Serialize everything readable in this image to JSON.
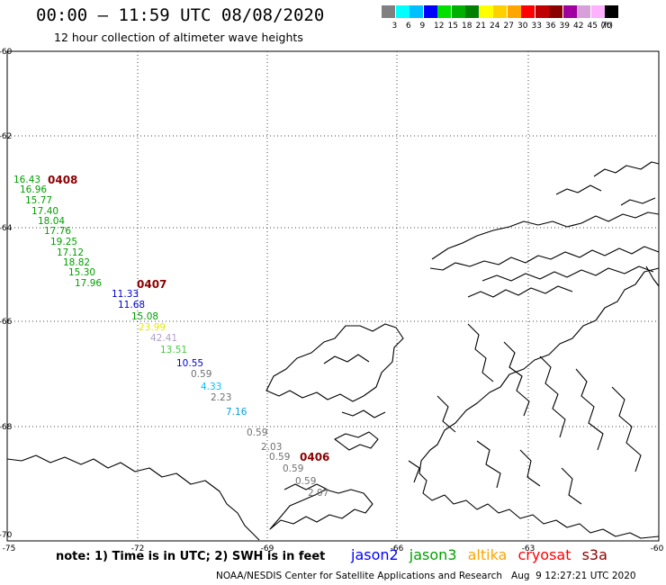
{
  "header": {
    "title": "00:00 — 11:59 UTC 08/08/2020",
    "subtitle": "12 hour collection of altimeter wave heights"
  },
  "legend": {
    "colors": [
      "#808080",
      "#00ffff",
      "#00c0ff",
      "#0000ff",
      "#00e000",
      "#00b000",
      "#008000",
      "#ffff00",
      "#ffd000",
      "#ffa500",
      "#ff0000",
      "#c00000",
      "#8b0000",
      "#a000a0",
      "#d8a0d8",
      "#ffb0ff",
      "#000000"
    ],
    "labels": [
      "3",
      "6",
      "9",
      "12",
      "15",
      "18",
      "21",
      "24",
      "27",
      "30",
      "33",
      "36",
      "39",
      "42",
      "45",
      "70"
    ],
    "unit": "(ft)"
  },
  "axes": {
    "lat_labels": [
      "-60",
      "-62",
      "-64",
      "-66",
      "-68",
      "-70"
    ],
    "lon_labels": [
      "-75",
      "-72",
      "-69",
      "-66",
      "-63",
      "-60"
    ]
  },
  "passes": [
    {
      "id": "0408"
    },
    {
      "id": "0407"
    },
    {
      "id": "0406"
    }
  ],
  "measurements": [
    {
      "value": "16.43",
      "color": "#00a000"
    },
    {
      "value": "16.96",
      "color": "#00a000"
    },
    {
      "value": "15.77",
      "color": "#00a000"
    },
    {
      "value": "17.40",
      "color": "#00a000"
    },
    {
      "value": "18.04",
      "color": "#00a000"
    },
    {
      "value": "17.76",
      "color": "#00a000"
    },
    {
      "value": "19.25",
      "color": "#00a000"
    },
    {
      "value": "17.12",
      "color": "#00a000"
    },
    {
      "value": "18.82",
      "color": "#00a000"
    },
    {
      "value": "15.30",
      "color": "#00a000"
    },
    {
      "value": "17.96",
      "color": "#00a000"
    },
    {
      "value": "11.33",
      "color": "#0000d0"
    },
    {
      "value": "11.68",
      "color": "#0000d0"
    },
    {
      "value": "15.08",
      "color": "#00a000"
    },
    {
      "value": "23.99",
      "color": "#e8e800"
    },
    {
      "value": "42.41",
      "color": "#b0a0c8"
    },
    {
      "value": "13.51",
      "color": "#44cc44"
    },
    {
      "value": "10.55",
      "color": "#0000d0"
    },
    {
      "value": "0.59",
      "color": "#707070"
    },
    {
      "value": "4.33",
      "color": "#00c0ff"
    },
    {
      "value": "2.23",
      "color": "#707070"
    },
    {
      "value": "7.16",
      "color": "#00a0e0"
    },
    {
      "value": "0.59",
      "color": "#707070"
    },
    {
      "value": "2.03",
      "color": "#707070"
    },
    {
      "value": "0.59",
      "color": "#707070"
    },
    {
      "value": "0.59",
      "color": "#707070"
    },
    {
      "value": "0.59",
      "color": "#707070"
    },
    {
      "value": "2.07",
      "color": "#707070"
    }
  ],
  "footer": {
    "note": "note: 1) Time is in UTC; 2) SWH is in feet",
    "satellites": [
      {
        "name": "jason2",
        "color": "#0000ff"
      },
      {
        "name": "jason3",
        "color": "#00a000"
      },
      {
        "name": "altika",
        "color": "#ffa500"
      },
      {
        "name": "cryosat",
        "color": "#ff0000"
      },
      {
        "name": "s3a",
        "color": "#8b0000"
      }
    ],
    "credit": "NOAA/NESDIS Center for Satellite Applications and Research   Aug  9 12:27:21 UTC 2020"
  }
}
